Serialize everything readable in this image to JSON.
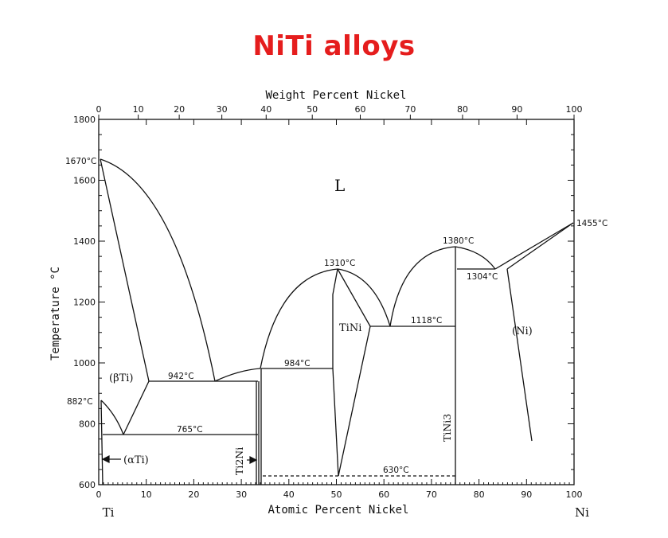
{
  "title": "NiTi alloys",
  "colors": {
    "title": "#e51d1d",
    "ink": "#111111",
    "background": "#ffffff"
  },
  "chart_data": {
    "type": "phase-diagram",
    "top_axis": {
      "label": "Weight Percent Nickel",
      "ticks": [
        "0",
        "10",
        "20",
        "30",
        "40",
        "50",
        "60",
        "70",
        "80",
        "90",
        "100"
      ]
    },
    "bottom_axis": {
      "label": "Atomic Percent Nickel",
      "ticks": [
        "0",
        "10",
        "20",
        "30",
        "40",
        "50",
        "60",
        "70",
        "80",
        "90",
        "100"
      ],
      "left_end": "Ti",
      "right_end": "Ni"
    },
    "y_axis": {
      "label": "Temperature °C",
      "ticks": [
        "600",
        "800",
        "1000",
        "1200",
        "1400",
        "1600",
        "1800"
      ],
      "range": [
        600,
        1800
      ]
    },
    "annotations": {
      "t1670": "1670°C",
      "t882": "882°C",
      "t1455": "1455°C",
      "t1380": "1380°C",
      "t1304": "1304°C",
      "t1310": "1310°C",
      "t1118": "1118°C",
      "t984": "984°C",
      "t942": "942°C",
      "t765": "765°C",
      "t630": "630°C"
    },
    "phases": {
      "liquid": "L",
      "beta_ti": "(βTi)",
      "alpha_ti": "(αTi)",
      "ti2ni": "Ti2Ni",
      "tini": "TiNi",
      "tini3": "TiNi3",
      "ni": "(Ni)"
    }
  }
}
